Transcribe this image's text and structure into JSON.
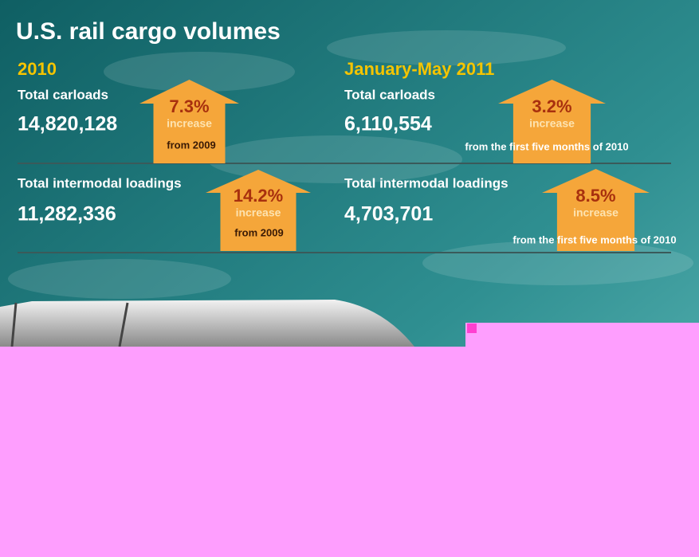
{
  "title": "U.S. rail cargo volumes",
  "sections": [
    {
      "heading": "2010",
      "items": [
        {
          "label": "Total carloads",
          "value": "14,820,128",
          "change": "7.3%",
          "word": "increase",
          "note": "from 2009"
        },
        {
          "label": "Total intermodal loadings",
          "value": "11,282,336",
          "change": "14.2%",
          "word": "increase",
          "note": "from 2009"
        }
      ]
    },
    {
      "heading": "January-May 2011",
      "items": [
        {
          "label": "Total carloads",
          "value": "6,110,554",
          "change": "3.2%",
          "word": "increase",
          "note": "from the first five months of 2010"
        },
        {
          "label": "Total intermodal loadings",
          "value": "4,703,701",
          "change": "8.5%",
          "word": "increase",
          "note": "from the first five months of 2010"
        }
      ]
    }
  ]
}
